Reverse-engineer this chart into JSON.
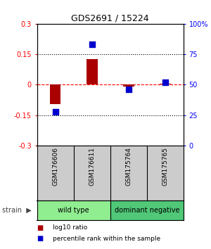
{
  "title": "GDS2691 / 15224",
  "samples": [
    "GSM176606",
    "GSM176611",
    "GSM175764",
    "GSM175765"
  ],
  "log10_ratio": [
    -0.095,
    0.125,
    -0.01,
    0.005
  ],
  "percentile_rank": [
    28,
    83,
    46,
    52
  ],
  "groups": [
    {
      "label": "wild type",
      "samples": [
        0,
        1
      ],
      "color": "#90EE90"
    },
    {
      "label": "dominant negative",
      "samples": [
        2,
        3
      ],
      "color": "#50C878"
    }
  ],
  "group_label": "strain",
  "ylim_left": [
    -0.3,
    0.3
  ],
  "ylim_right": [
    0,
    100
  ],
  "yticks_left": [
    -0.3,
    -0.15,
    0,
    0.15,
    0.3
  ],
  "ytick_labels_left": [
    "-0.3",
    "-0.15",
    "0",
    "0.15",
    "0.3"
  ],
  "yticks_right": [
    0,
    25,
    50,
    75,
    100
  ],
  "ytick_labels_right": [
    "0",
    "25",
    "50",
    "75",
    "100%"
  ],
  "hlines": [
    -0.15,
    0,
    0.15
  ],
  "bar_color": "#AA0000",
  "dot_color": "#0000CC",
  "bar_width": 0.3,
  "dot_size": 28,
  "legend_items": [
    {
      "color": "#AA0000",
      "label": "log10 ratio"
    },
    {
      "color": "#0000CC",
      "label": "percentile rank within the sample"
    }
  ],
  "bg_color": "#ffffff",
  "plot_bg": "#ffffff",
  "label_area_bg": "#cccccc",
  "sample_label_fontsize": 6.5,
  "title_fontsize": 9,
  "group_label_fontsize": 7
}
